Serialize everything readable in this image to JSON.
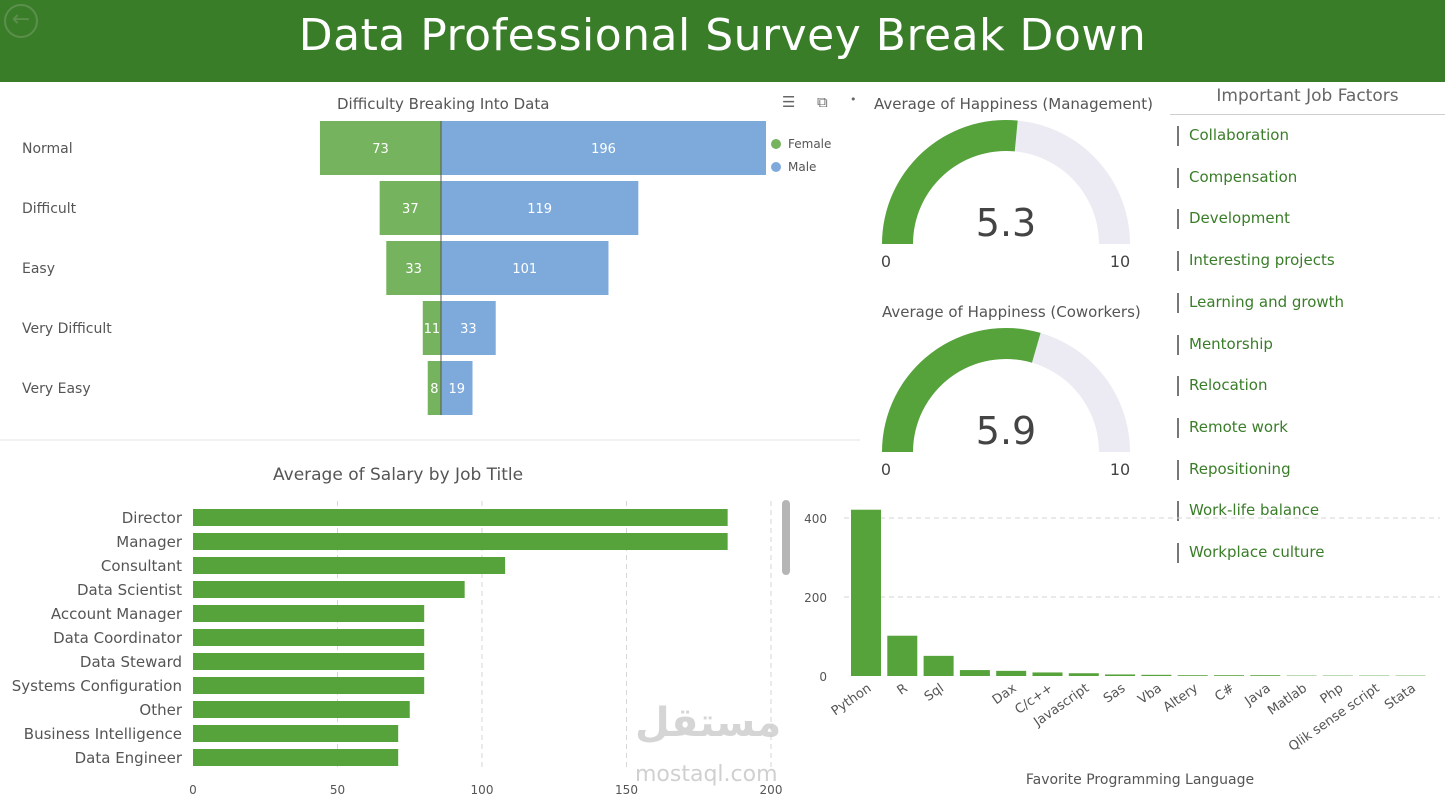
{
  "header": {
    "title": "Data Professional Survey Break Down",
    "back_icon": "back-arrow-icon"
  },
  "colors": {
    "header": "#3a7d29",
    "green": "#57a33b",
    "female": "#76b35f",
    "male": "#7eaadb",
    "gauge_bg": "#ecebf4"
  },
  "difficulty_chart": {
    "title": "Difficulty Breaking Into Data",
    "legend": [
      "Female",
      "Male"
    ],
    "icons": [
      "filter-icon",
      "focus-mode-icon",
      "more-options-icon"
    ]
  },
  "gauge_management": {
    "title": "Average of Happiness (Management)",
    "value": "5.3",
    "min_label": "0",
    "max_label": "10"
  },
  "gauge_coworkers": {
    "title": "Average of Happiness (Coworkers)",
    "value": "5.9",
    "min_label": "0",
    "max_label": "10"
  },
  "job_factors": {
    "title": "Important Job Factors",
    "items": [
      "Collaboration",
      "Compensation",
      "Development",
      "Interesting projects",
      "Learning and growth",
      "Mentorship",
      "Relocation",
      "Remote work",
      "Repositioning",
      "Work-life balance",
      "Workplace culture"
    ]
  },
  "salary_chart": {
    "title": "Average of Salary by Job Title"
  },
  "language_chart": {
    "xlabel": "Favorite Programming Language"
  },
  "watermark": {
    "text": "مستقل",
    "sub": "mostaql.com"
  },
  "chart_data": [
    {
      "type": "bar",
      "orientation": "horizontal-diverging",
      "title": "Difficulty Breaking Into Data",
      "categories": [
        "Normal",
        "Difficult",
        "Easy",
        "Very Difficult",
        "Very Easy"
      ],
      "series": [
        {
          "name": "Female",
          "values": [
            73,
            37,
            33,
            11,
            8
          ]
        },
        {
          "name": "Male",
          "values": [
            196,
            119,
            101,
            33,
            19
          ]
        }
      ],
      "legend": "top-right"
    },
    {
      "type": "gauge",
      "title": "Average of Happiness (Management)",
      "value": 5.3,
      "min": 0,
      "max": 10
    },
    {
      "type": "gauge",
      "title": "Average of Happiness (Coworkers)",
      "value": 5.9,
      "min": 0,
      "max": 10
    },
    {
      "type": "bar",
      "orientation": "horizontal",
      "title": "Average of Salary by Job Title",
      "categories": [
        "Director",
        "Manager",
        "Consultant",
        "Data Scientist",
        "Account Manager",
        "Data Coordinator",
        "Data Steward",
        "Systems Configuration",
        "Other",
        "Business Intelligence",
        "Data Engineer"
      ],
      "values": [
        185,
        185,
        108,
        94,
        80,
        80,
        80,
        80,
        75,
        71,
        71
      ],
      "xlim": [
        0,
        200
      ],
      "xticks": [
        0,
        50,
        100,
        150,
        200
      ],
      "grid": true
    },
    {
      "type": "bar",
      "title": "",
      "xlabel": "Favorite Programming Language",
      "categories": [
        "Python",
        "R",
        "Sql",
        "",
        "Dax",
        "C/c++",
        "Javascript",
        "Sas",
        "Vba",
        "Altery",
        "C#",
        "Java",
        "Matlab",
        "Php",
        "Qlik sense script",
        "Stata"
      ],
      "values": [
        421,
        102,
        51,
        15,
        13,
        9,
        7,
        4,
        3,
        2,
        2,
        2,
        1,
        1,
        1,
        1
      ],
      "ylim": [
        0,
        450
      ],
      "yticks": [
        0,
        200,
        400
      ],
      "grid": true
    }
  ]
}
